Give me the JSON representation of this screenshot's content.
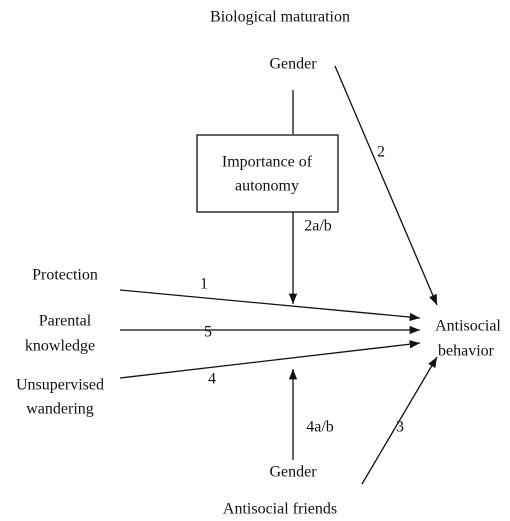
{
  "nodes": [
    {
      "label": [
        "Biological maturation"
      ]
    },
    {
      "label": [
        "Gender"
      ]
    },
    {
      "label": [
        "Importance of",
        "autonomy"
      ]
    },
    {
      "label": [
        "Protection"
      ]
    },
    {
      "label": [
        "Parental",
        "knowledge"
      ]
    },
    {
      "label": [
        "Unsupervised",
        "wandering"
      ]
    },
    {
      "label": [
        "Antisocial",
        "behavior"
      ]
    },
    {
      "label": [
        "Gender"
      ]
    },
    {
      "label": [
        "Antisocial friends"
      ]
    }
  ],
  "edges": [
    {
      "label": "1"
    },
    {
      "label": "2"
    },
    {
      "label": "2a/b"
    },
    {
      "label": "3"
    },
    {
      "label": "4"
    },
    {
      "label": "4a/b"
    },
    {
      "label": "5"
    }
  ]
}
